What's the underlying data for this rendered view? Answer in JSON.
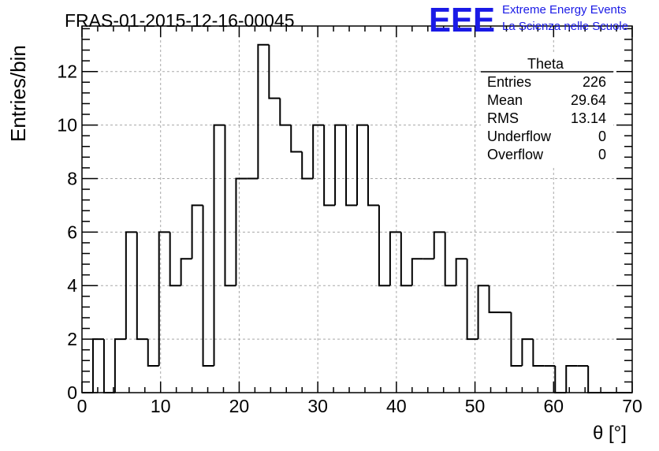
{
  "header": {
    "title": "FRAS-01-2015-12-16-00045",
    "logo_text": "EEE",
    "logo_line1": "Extreme Energy Events",
    "logo_line2": "La Scienza nelle Scuole",
    "logo_color": "#1a1ae6"
  },
  "stats": {
    "name": "Theta",
    "rows": [
      {
        "label": "Entries",
        "value": "226"
      },
      {
        "label": "Mean",
        "value": "29.64"
      },
      {
        "label": "RMS",
        "value": "13.14"
      },
      {
        "label": "Underflow",
        "value": "0"
      },
      {
        "label": "Overflow",
        "value": "0"
      }
    ]
  },
  "chart_data": {
    "type": "histogram",
    "xlabel": "θ [°]",
    "ylabel": "Entries/bin",
    "xlim": [
      0,
      70
    ],
    "ylim": [
      0,
      13.7
    ],
    "grid": true,
    "bin_width": 1.4,
    "x_ticks": [
      0,
      10,
      20,
      30,
      40,
      50,
      60,
      70
    ],
    "y_ticks": [
      0,
      2,
      4,
      6,
      8,
      10,
      12
    ],
    "values": [
      0,
      2,
      0,
      2,
      6,
      2,
      1,
      6,
      4,
      5,
      7,
      1,
      10,
      4,
      8,
      8,
      13,
      11,
      10,
      9,
      8,
      10,
      7,
      10,
      7,
      10,
      7,
      4,
      6,
      4,
      5,
      5,
      6,
      4,
      5,
      2,
      4,
      3,
      3,
      1,
      2,
      1,
      1,
      0,
      1,
      1,
      0,
      0,
      0,
      0
    ]
  }
}
